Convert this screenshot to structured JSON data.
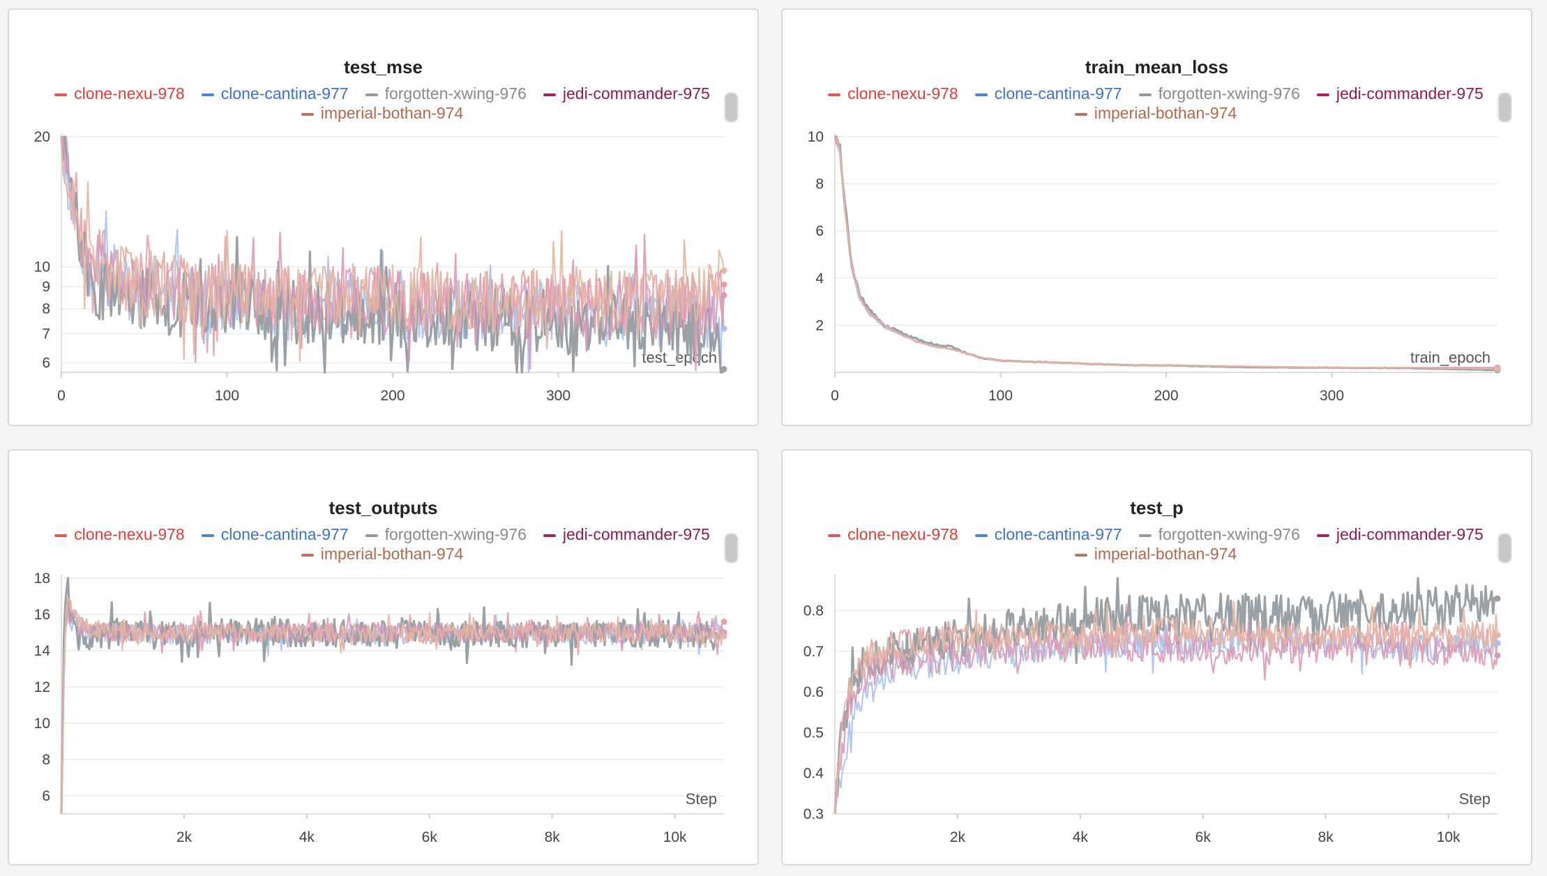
{
  "legend": [
    {
      "name": "clone-nexu-978",
      "color": "#e05a55"
    },
    {
      "name": "clone-cantina-977",
      "color": "#4a82d4"
    },
    {
      "name": "forgotten-xwing-976",
      "color": "#999999"
    },
    {
      "name": "jedi-commander-975",
      "color": "#a3245e"
    },
    {
      "name": "imperial-bothan-974",
      "color": "#b8745a"
    }
  ],
  "chart_data": [
    {
      "id": "test_mse",
      "type": "line",
      "title": "test_mse",
      "xlabel": "test_epoch",
      "xlim": [
        0,
        400
      ],
      "ylim": [
        5.7,
        20
      ],
      "yscale": "log",
      "xticks": [
        {
          "v": 0,
          "l": "0"
        },
        {
          "v": 100,
          "l": "100"
        },
        {
          "v": 200,
          "l": "200"
        },
        {
          "v": 300,
          "l": "300"
        }
      ],
      "yticks": [
        {
          "v": 6,
          "l": "6"
        },
        {
          "v": 7,
          "l": "7"
        },
        {
          "v": 8,
          "l": "8"
        },
        {
          "v": 9,
          "l": "9"
        },
        {
          "v": 10,
          "l": "10"
        },
        {
          "v": 20,
          "l": "20"
        }
      ],
      "series": [
        {
          "name": "clone-nexu-978",
          "color": "#e8a2a6",
          "x": [
            0,
            5,
            10,
            20,
            40,
            60,
            80,
            100,
            120,
            150,
            180,
            200,
            230,
            260,
            280,
            300,
            330,
            360,
            390,
            400
          ],
          "y": [
            20,
            15,
            12,
            10.5,
            9.5,
            9.2,
            8.8,
            8.6,
            8.5,
            8.4,
            8.5,
            8.4,
            8.3,
            8.3,
            8.2,
            8.3,
            8.2,
            8.2,
            8.3,
            9.1
          ]
        },
        {
          "name": "clone-cantina-977",
          "color": "#a9c3ee",
          "x": [
            0,
            5,
            10,
            20,
            40,
            60,
            80,
            100,
            120,
            150,
            180,
            200,
            230,
            260,
            280,
            300,
            330,
            360,
            390,
            400
          ],
          "y": [
            20,
            14,
            11,
            9.5,
            8.8,
            8.5,
            8.3,
            8.2,
            8.1,
            8.0,
            8.1,
            8.0,
            7.9,
            7.9,
            7.8,
            7.9,
            7.8,
            7.7,
            7.6,
            7.2
          ]
        },
        {
          "name": "forgotten-xwing-976",
          "color": "#99a0a6",
          "x": [
            0,
            5,
            10,
            20,
            40,
            60,
            80,
            100,
            120,
            150,
            180,
            200,
            230,
            260,
            280,
            300,
            330,
            360,
            390,
            400
          ],
          "y": [
            20,
            16,
            11,
            9.2,
            8.6,
            8.3,
            8.1,
            8.0,
            7.9,
            7.9,
            7.8,
            7.8,
            7.6,
            7.5,
            7.5,
            7.4,
            7.3,
            7.2,
            7.0,
            5.8
          ]
        },
        {
          "name": "jedi-commander-975",
          "color": "#d99ab5",
          "x": [
            0,
            5,
            10,
            20,
            40,
            60,
            80,
            100,
            120,
            150,
            180,
            200,
            230,
            260,
            280,
            300,
            330,
            360,
            390,
            400
          ],
          "y": [
            20,
            15,
            12,
            10,
            9.2,
            8.9,
            8.6,
            8.5,
            8.4,
            8.3,
            8.4,
            8.3,
            8.2,
            8.2,
            8.1,
            8.2,
            8.1,
            8.1,
            8.2,
            8.6
          ]
        },
        {
          "name": "imperial-bothan-974",
          "color": "#e3b6a3",
          "x": [
            0,
            5,
            10,
            20,
            40,
            60,
            80,
            100,
            120,
            150,
            180,
            200,
            230,
            260,
            280,
            300,
            330,
            360,
            390,
            400
          ],
          "y": [
            20,
            15,
            12,
            10.2,
            9.4,
            9.0,
            8.8,
            8.7,
            8.6,
            8.5,
            8.6,
            8.5,
            8.4,
            8.4,
            8.3,
            8.4,
            8.3,
            8.4,
            8.5,
            9.8
          ]
        }
      ]
    },
    {
      "id": "train_mean_loss",
      "type": "line",
      "title": "train_mean_loss",
      "xlabel": "train_epoch",
      "xlim": [
        0,
        400
      ],
      "ylim": [
        0,
        10
      ],
      "yscale": "linear",
      "xticks": [
        {
          "v": 0,
          "l": "0"
        },
        {
          "v": 100,
          "l": "100"
        },
        {
          "v": 200,
          "l": "200"
        },
        {
          "v": 300,
          "l": "300"
        }
      ],
      "yticks": [
        {
          "v": 2,
          "l": "2"
        },
        {
          "v": 4,
          "l": "4"
        },
        {
          "v": 6,
          "l": "6"
        },
        {
          "v": 8,
          "l": "8"
        },
        {
          "v": 10,
          "l": "10"
        }
      ],
      "series": [
        {
          "name": "clone-nexu-978",
          "color": "#e8a2a6",
          "x": [
            0,
            3,
            6,
            10,
            15,
            20,
            30,
            40,
            50,
            60,
            70,
            80,
            90,
            100,
            120,
            140,
            160,
            180,
            200,
            250,
            300,
            350,
            400
          ],
          "y": [
            10,
            9.5,
            7,
            4.5,
            3.2,
            2.6,
            2.0,
            1.6,
            1.3,
            1.1,
            1.0,
            0.8,
            0.6,
            0.5,
            0.45,
            0.4,
            0.35,
            0.3,
            0.3,
            0.25,
            0.2,
            0.2,
            0.2
          ]
        },
        {
          "name": "clone-cantina-977",
          "color": "#a9c3ee",
          "x": [
            0,
            3,
            6,
            10,
            15,
            20,
            30,
            40,
            50,
            60,
            70,
            80,
            90,
            100,
            120,
            140,
            160,
            180,
            200,
            250,
            300,
            350,
            400
          ],
          "y": [
            10,
            9.2,
            6.8,
            4.4,
            3.1,
            2.5,
            1.9,
            1.6,
            1.3,
            1.1,
            1.0,
            0.8,
            0.6,
            0.5,
            0.45,
            0.4,
            0.35,
            0.3,
            0.3,
            0.25,
            0.2,
            0.2,
            0.15
          ]
        },
        {
          "name": "forgotten-xwing-976",
          "color": "#99a0a6",
          "x": [
            0,
            3,
            6,
            10,
            15,
            20,
            30,
            40,
            50,
            60,
            70,
            80,
            90,
            100,
            120,
            140,
            160,
            180,
            200,
            250,
            300,
            350,
            400
          ],
          "y": [
            10,
            9.6,
            7.2,
            4.6,
            3.3,
            2.7,
            2.0,
            1.7,
            1.4,
            1.2,
            1.1,
            0.8,
            0.6,
            0.5,
            0.45,
            0.4,
            0.35,
            0.3,
            0.3,
            0.22,
            0.2,
            0.18,
            0.1
          ]
        },
        {
          "name": "jedi-commander-975",
          "color": "#d99ab5",
          "x": [
            0,
            3,
            6,
            10,
            15,
            20,
            30,
            40,
            50,
            60,
            70,
            80,
            90,
            100,
            120,
            140,
            160,
            180,
            200,
            250,
            300,
            350,
            400
          ],
          "y": [
            10,
            9.4,
            7.0,
            4.5,
            3.2,
            2.6,
            2.0,
            1.6,
            1.3,
            1.1,
            1.0,
            0.8,
            0.6,
            0.5,
            0.45,
            0.4,
            0.35,
            0.3,
            0.3,
            0.24,
            0.2,
            0.2,
            0.2
          ]
        },
        {
          "name": "imperial-bothan-974",
          "color": "#e3b6a3",
          "x": [
            0,
            3,
            6,
            10,
            15,
            20,
            30,
            40,
            50,
            60,
            70,
            80,
            90,
            100,
            120,
            140,
            160,
            180,
            200,
            250,
            300,
            350,
            400
          ],
          "y": [
            10,
            9.5,
            7.1,
            4.6,
            3.2,
            2.6,
            2.0,
            1.6,
            1.3,
            1.1,
            1.0,
            0.8,
            0.6,
            0.5,
            0.45,
            0.4,
            0.35,
            0.3,
            0.3,
            0.25,
            0.2,
            0.2,
            0.15
          ]
        }
      ]
    },
    {
      "id": "test_outputs",
      "type": "line",
      "title": "test_outputs",
      "xlabel": "Step",
      "xlim": [
        0,
        10800
      ],
      "ylim": [
        5,
        18
      ],
      "yscale": "linear",
      "xticks": [
        {
          "v": 2000,
          "l": "2k"
        },
        {
          "v": 4000,
          "l": "4k"
        },
        {
          "v": 6000,
          "l": "6k"
        },
        {
          "v": 8000,
          "l": "8k"
        },
        {
          "v": 10000,
          "l": "10k"
        }
      ],
      "yticks": [
        {
          "v": 6,
          "l": "6"
        },
        {
          "v": 8,
          "l": "8"
        },
        {
          "v": 10,
          "l": "10"
        },
        {
          "v": 12,
          "l": "12"
        },
        {
          "v": 14,
          "l": "14"
        },
        {
          "v": 16,
          "l": "16"
        },
        {
          "v": 18,
          "l": "18"
        }
      ],
      "series": [
        {
          "name": "clone-nexu-978",
          "color": "#e8a2a6",
          "x": [
            0,
            50,
            100,
            200,
            400,
            800,
            1500,
            2500,
            4000,
            6000,
            8000,
            10000,
            10800
          ],
          "y": [
            5,
            15,
            16.5,
            16,
            15.2,
            15.1,
            15.0,
            15.0,
            15.0,
            14.9,
            15.0,
            14.9,
            15.6
          ]
        },
        {
          "name": "clone-cantina-977",
          "color": "#a9c3ee",
          "x": [
            0,
            50,
            100,
            200,
            400,
            800,
            1500,
            2500,
            4000,
            6000,
            8000,
            10000,
            10800
          ],
          "y": [
            5,
            14,
            16,
            15.5,
            15,
            15,
            14.9,
            14.9,
            14.9,
            14.9,
            14.9,
            14.9,
            15.0
          ]
        },
        {
          "name": "forgotten-xwing-976",
          "color": "#99a0a6",
          "x": [
            0,
            50,
            100,
            200,
            400,
            800,
            1500,
            2500,
            4000,
            6000,
            8000,
            10000,
            10800
          ],
          "y": [
            5,
            16,
            17,
            15,
            14.5,
            15,
            15,
            15,
            15,
            14.9,
            14.9,
            14.9,
            14.8
          ]
        },
        {
          "name": "jedi-commander-975",
          "color": "#d99ab5",
          "x": [
            0,
            50,
            100,
            200,
            400,
            800,
            1500,
            2500,
            4000,
            6000,
            8000,
            10000,
            10800
          ],
          "y": [
            5,
            15,
            16,
            15.5,
            15.1,
            15.0,
            15.0,
            15.0,
            15.0,
            15.0,
            15.0,
            15.0,
            15.0
          ]
        },
        {
          "name": "imperial-bothan-974",
          "color": "#e3b6a3",
          "x": [
            0,
            50,
            100,
            200,
            400,
            800,
            1500,
            2500,
            4000,
            6000,
            8000,
            10000,
            10800
          ],
          "y": [
            5,
            15,
            16.5,
            15.8,
            15.2,
            15.1,
            15.0,
            15.0,
            15.0,
            15.0,
            15.0,
            15.0,
            14.8
          ]
        }
      ]
    },
    {
      "id": "test_p",
      "type": "line",
      "title": "test_p",
      "xlabel": "Step",
      "xlim": [
        0,
        10800
      ],
      "ylim": [
        0.3,
        0.88
      ],
      "yscale": "linear",
      "xticks": [
        {
          "v": 2000,
          "l": "2k"
        },
        {
          "v": 4000,
          "l": "4k"
        },
        {
          "v": 6000,
          "l": "6k"
        },
        {
          "v": 8000,
          "l": "8k"
        },
        {
          "v": 10000,
          "l": "10k"
        }
      ],
      "yticks": [
        {
          "v": 0.3,
          "l": "0.3"
        },
        {
          "v": 0.4,
          "l": "0.4"
        },
        {
          "v": 0.5,
          "l": "0.5"
        },
        {
          "v": 0.6,
          "l": "0.6"
        },
        {
          "v": 0.7,
          "l": "0.7"
        },
        {
          "v": 0.8,
          "l": "0.8"
        }
      ],
      "series": [
        {
          "name": "clone-nexu-978",
          "color": "#e8a2a6",
          "x": [
            0,
            100,
            300,
            600,
            1000,
            2000,
            3000,
            4000,
            5000,
            6000,
            7000,
            8000,
            9000,
            10000,
            10800
          ],
          "y": [
            0.3,
            0.5,
            0.65,
            0.7,
            0.72,
            0.73,
            0.74,
            0.74,
            0.74,
            0.73,
            0.74,
            0.73,
            0.74,
            0.73,
            0.72
          ]
        },
        {
          "name": "clone-cantina-977",
          "color": "#a9c3ee",
          "x": [
            0,
            100,
            300,
            600,
            1000,
            2000,
            3000,
            4000,
            5000,
            6000,
            7000,
            8000,
            9000,
            10000,
            10800
          ],
          "y": [
            0.3,
            0.38,
            0.55,
            0.62,
            0.66,
            0.68,
            0.7,
            0.71,
            0.72,
            0.72,
            0.72,
            0.72,
            0.71,
            0.71,
            0.72
          ]
        },
        {
          "name": "forgotten-xwing-976",
          "color": "#99a0a6",
          "x": [
            0,
            100,
            300,
            600,
            1000,
            2000,
            3000,
            4000,
            5000,
            6000,
            7000,
            8000,
            9000,
            10000,
            10800
          ],
          "y": [
            0.3,
            0.5,
            0.63,
            0.68,
            0.7,
            0.73,
            0.76,
            0.78,
            0.79,
            0.8,
            0.79,
            0.8,
            0.8,
            0.81,
            0.83
          ]
        },
        {
          "name": "jedi-commander-975",
          "color": "#d99ab5",
          "x": [
            0,
            100,
            300,
            600,
            1000,
            2000,
            3000,
            4000,
            5000,
            6000,
            7000,
            8000,
            9000,
            10000,
            10800
          ],
          "y": [
            0.3,
            0.45,
            0.6,
            0.65,
            0.67,
            0.69,
            0.7,
            0.71,
            0.71,
            0.7,
            0.7,
            0.71,
            0.7,
            0.7,
            0.69
          ]
        },
        {
          "name": "imperial-bothan-974",
          "color": "#e3b6a3",
          "x": [
            0,
            100,
            300,
            600,
            1000,
            2000,
            3000,
            4000,
            5000,
            6000,
            7000,
            8000,
            9000,
            10000,
            10800
          ],
          "y": [
            0.3,
            0.5,
            0.64,
            0.69,
            0.71,
            0.73,
            0.74,
            0.74,
            0.75,
            0.75,
            0.74,
            0.74,
            0.74,
            0.74,
            0.74
          ]
        }
      ]
    }
  ]
}
